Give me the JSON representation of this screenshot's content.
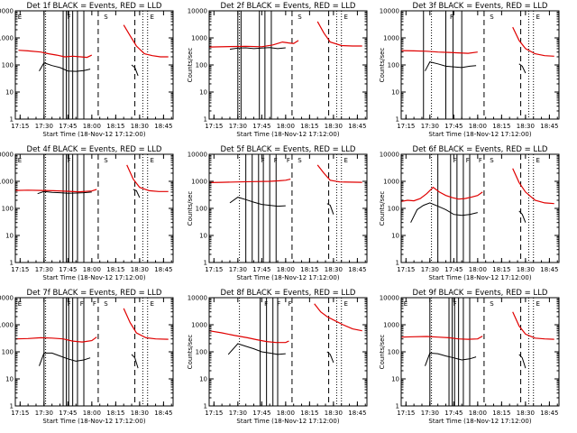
{
  "colors": {
    "events": "#000000",
    "lld": "#e00000",
    "background": "#ffffff",
    "axes": "#000000"
  },
  "chart_data": [
    {
      "type": "line",
      "title": "Det 1f BLACK = Events, RED = LLD",
      "xlabel": "Start Time (18-Nov-12 17:12:00)",
      "ylabel": "Counts/sec",
      "x_ticks": [
        "17:15",
        "17:30",
        "17:45",
        "18:00",
        "18:15",
        "18:30",
        "18:45"
      ],
      "y_ticks": [
        "1",
        "10",
        "100",
        "1000",
        "10000"
      ],
      "xlim": [
        "17:12",
        "18:51"
      ],
      "ylim": [
        1,
        10000
      ],
      "yscale": "log",
      "marker_labels": [
        "E",
        "F",
        "S",
        "E"
      ],
      "series": [
        {
          "name": "Events",
          "x": [
            "17:27",
            "17:30",
            "17:35",
            "17:40",
            "17:45",
            "17:50",
            "17:55",
            "17:59"
          ],
          "y": [
            60,
            120,
            95,
            80,
            60,
            58,
            62,
            70
          ]
        },
        {
          "name": "Events",
          "x": [
            "18:25",
            "18:27",
            "18:29"
          ],
          "y": [
            100,
            80,
            40
          ]
        },
        {
          "name": "LLD",
          "x": [
            "17:14",
            "17:20",
            "17:28",
            "17:33",
            "17:38",
            "17:43",
            "17:48",
            "17:53",
            "17:57",
            "18:00"
          ],
          "y": [
            350,
            330,
            300,
            260,
            230,
            200,
            210,
            200,
            190,
            230
          ]
        },
        {
          "name": "LLD",
          "x": [
            "18:20",
            "18:24",
            "18:28",
            "18:33",
            "18:38",
            "18:43",
            "18:48"
          ],
          "y": [
            3000,
            1200,
            500,
            260,
            220,
            200,
            200
          ]
        }
      ]
    },
    {
      "type": "line",
      "title": "Det 2f BLACK = Events, RED = LLD",
      "xlabel": "Start Time (18-Nov-12 17:12:00)",
      "ylabel": "Counts/sec",
      "x_ticks": [
        "17:15",
        "17:30",
        "17:45",
        "18:00",
        "18:15",
        "18:30",
        "18:45"
      ],
      "y_ticks": [
        "1",
        "10",
        "100",
        "1000",
        "10000"
      ],
      "xlim": [
        "17:12",
        "18:51"
      ],
      "ylim": [
        1,
        10000
      ],
      "yscale": "log",
      "marker_labels": [
        "S",
        "E"
      ],
      "series": [
        {
          "name": "Events",
          "x": [
            "17:25",
            "17:30",
            "17:35",
            "17:40",
            "17:45",
            "17:50",
            "17:55",
            "18:00"
          ],
          "y": [
            380,
            420,
            430,
            400,
            420,
            440,
            400,
            430
          ]
        },
        {
          "name": "LLD",
          "x": [
            "17:12",
            "17:25",
            "17:35",
            "17:45",
            "17:52",
            "17:58",
            "18:02",
            "18:05",
            "18:08"
          ],
          "y": [
            460,
            480,
            490,
            470,
            550,
            700,
            650,
            620,
            800
          ]
        },
        {
          "name": "LLD",
          "x": [
            "18:20",
            "18:24",
            "18:28",
            "18:35",
            "18:42",
            "18:48"
          ],
          "y": [
            4000,
            1500,
            700,
            520,
            500,
            500
          ]
        }
      ]
    },
    {
      "type": "line",
      "title": "Det 3f BLACK = Events, RED = LLD",
      "xlabel": "Start Time (18-Nov-12 17:12:00)",
      "ylabel": "Counts/sec",
      "x_ticks": [
        "17:15",
        "17:30",
        "17:45",
        "18:00",
        "18:15",
        "18:30",
        "18:45"
      ],
      "y_ticks": [
        "1",
        "10",
        "100",
        "1000",
        "10000"
      ],
      "xlim": [
        "17:12",
        "18:51"
      ],
      "ylim": [
        1,
        10000
      ],
      "yscale": "log",
      "marker_labels": [
        "F",
        "S",
        "E"
      ],
      "series": [
        {
          "name": "Events",
          "x": [
            "17:27",
            "17:30",
            "17:35",
            "17:40",
            "17:45",
            "17:50",
            "17:55",
            "17:59"
          ],
          "y": [
            60,
            130,
            110,
            90,
            85,
            80,
            90,
            95
          ]
        },
        {
          "name": "Events",
          "x": [
            "18:26",
            "18:28",
            "18:30"
          ],
          "y": [
            110,
            90,
            50
          ]
        },
        {
          "name": "LLD",
          "x": [
            "17:12",
            "17:20",
            "17:28",
            "17:35",
            "17:42",
            "17:48",
            "17:54",
            "18:00"
          ],
          "y": [
            340,
            330,
            320,
            300,
            290,
            280,
            270,
            300
          ]
        },
        {
          "name": "LLD",
          "x": [
            "18:22",
            "18:26",
            "18:30",
            "18:36",
            "18:42",
            "18:48"
          ],
          "y": [
            2500,
            800,
            400,
            260,
            220,
            210
          ]
        }
      ]
    },
    {
      "type": "line",
      "title": "Det 4f BLACK = Events, RED = LLD",
      "xlabel": "Start Time (18-Nov-12 17:12:00)",
      "ylabel": "Counts/sec",
      "x_ticks": [
        "17:15",
        "17:30",
        "17:45",
        "18:00",
        "18:15",
        "18:30",
        "18:45"
      ],
      "y_ticks": [
        "1",
        "10",
        "100",
        "1000",
        "10000"
      ],
      "xlim": [
        "17:12",
        "18:51"
      ],
      "ylim": [
        1,
        10000
      ],
      "yscale": "log",
      "marker_labels": [
        "E",
        "F",
        "S",
        "E"
      ],
      "series": [
        {
          "name": "Events",
          "x": [
            "17:26",
            "17:30",
            "17:35",
            "17:40",
            "17:45",
            "17:50",
            "17:55",
            "18:00"
          ],
          "y": [
            350,
            420,
            390,
            380,
            360,
            370,
            380,
            400
          ]
        },
        {
          "name": "Events",
          "x": [
            "18:26",
            "18:28",
            "18:30"
          ],
          "y": [
            500,
            450,
            250
          ]
        },
        {
          "name": "LLD",
          "x": [
            "17:12",
            "17:20",
            "17:28",
            "17:36",
            "17:44",
            "17:52",
            "18:00",
            "18:03"
          ],
          "y": [
            460,
            470,
            460,
            450,
            430,
            410,
            440,
            500
          ]
        },
        {
          "name": "LLD",
          "x": [
            "18:22",
            "18:26",
            "18:30",
            "18:36",
            "18:42",
            "18:48"
          ],
          "y": [
            4000,
            1200,
            600,
            450,
            420,
            420
          ]
        }
      ]
    },
    {
      "type": "line",
      "title": "Det 5f BLACK = Events, RED = LLD",
      "xlabel": "Start Time (18-Nov-12 17:12:00)",
      "ylabel": "Counts/sec",
      "x_ticks": [
        "17:15",
        "17:30",
        "17:45",
        "18:00",
        "18:15",
        "18:30",
        "18:45"
      ],
      "y_ticks": [
        "1",
        "10",
        "100",
        "1000",
        "10000"
      ],
      "xlim": [
        "17:12",
        "18:51"
      ],
      "ylim": [
        1,
        10000
      ],
      "yscale": "log",
      "marker_labels": [
        "F",
        "F",
        "F",
        "S",
        "E"
      ],
      "series": [
        {
          "name": "Events",
          "x": [
            "17:25",
            "17:30",
            "17:35",
            "17:40",
            "17:45",
            "17:50",
            "17:55",
            "18:00"
          ],
          "y": [
            160,
            260,
            210,
            170,
            140,
            130,
            120,
            125
          ]
        },
        {
          "name": "Events",
          "x": [
            "18:26",
            "18:28",
            "18:30"
          ],
          "y": [
            150,
            130,
            60
          ]
        },
        {
          "name": "LLD",
          "x": [
            "17:12",
            "17:20",
            "17:30",
            "17:40",
            "17:50",
            "17:56",
            "18:00",
            "18:03"
          ],
          "y": [
            900,
            920,
            950,
            980,
            1000,
            1050,
            1100,
            1200
          ]
        },
        {
          "name": "LLD",
          "x": [
            "18:20",
            "18:24",
            "18:28",
            "18:34",
            "18:40",
            "18:48"
          ],
          "y": [
            4000,
            2000,
            1100,
            950,
            930,
            920
          ]
        }
      ]
    },
    {
      "type": "line",
      "title": "Det 6f BLACK = Events, RED = LLD",
      "xlabel": "Start Time (18-Nov-12 17:12:00)",
      "ylabel": "Counts/sec",
      "x_ticks": [
        "17:15",
        "17:30",
        "17:45",
        "18:00",
        "18:15",
        "18:30",
        "18:45"
      ],
      "y_ticks": [
        "1",
        "10",
        "100",
        "1000",
        "10000"
      ],
      "xlim": [
        "17:12",
        "18:51"
      ],
      "ylim": [
        1,
        10000
      ],
      "yscale": "log",
      "marker_labels": [
        "F",
        "F",
        "F",
        "S",
        "E"
      ],
      "series": [
        {
          "name": "Events",
          "x": [
            "17:18",
            "17:22",
            "17:26",
            "17:30",
            "17:35",
            "17:40",
            "17:45",
            "17:50",
            "17:55",
            "18:00"
          ],
          "y": [
            30,
            90,
            130,
            160,
            120,
            90,
            60,
            55,
            60,
            70
          ]
        },
        {
          "name": "Events",
          "x": [
            "18:26",
            "18:28",
            "18:30"
          ],
          "y": [
            80,
            60,
            30
          ]
        },
        {
          "name": "LLD",
          "x": [
            "17:12",
            "17:16",
            "17:20",
            "17:24",
            "17:28",
            "17:32",
            "17:36",
            "17:40",
            "17:44",
            "17:48",
            "17:52",
            "17:56",
            "18:00",
            "18:03"
          ],
          "y": [
            180,
            200,
            190,
            230,
            350,
            600,
            400,
            300,
            250,
            220,
            230,
            260,
            300,
            400
          ]
        },
        {
          "name": "LLD",
          "x": [
            "18:22",
            "18:26",
            "18:30",
            "18:36",
            "18:42",
            "18:48"
          ],
          "y": [
            3000,
            900,
            400,
            200,
            160,
            150
          ]
        }
      ]
    },
    {
      "type": "line",
      "title": "Det 7f BLACK = Events, RED = LLD",
      "xlabel": "Start Time (18-Nov-12 17:12:00)",
      "ylabel": "Counts/sec",
      "x_ticks": [
        "17:15",
        "17:30",
        "17:45",
        "18:00",
        "18:15",
        "18:30",
        "18:45"
      ],
      "y_ticks": [
        "1",
        "10",
        "100",
        "1000",
        "10000"
      ],
      "xlim": [
        "17:12",
        "18:51"
      ],
      "ylim": [
        1,
        10000
      ],
      "yscale": "log",
      "marker_labels": [
        "E",
        "F",
        "F",
        "F",
        "S",
        "E"
      ],
      "series": [
        {
          "name": "Events",
          "x": [
            "17:27",
            "17:30",
            "17:35",
            "17:40",
            "17:45",
            "17:50",
            "17:55",
            "17:59"
          ],
          "y": [
            30,
            90,
            90,
            70,
            55,
            45,
            50,
            60
          ]
        },
        {
          "name": "Events",
          "x": [
            "18:25",
            "18:27",
            "18:29"
          ],
          "y": [
            80,
            60,
            25
          ]
        },
        {
          "name": "LLD",
          "x": [
            "17:12",
            "17:20",
            "17:28",
            "17:35",
            "17:42",
            "17:48",
            "17:54",
            "18:00",
            "18:03"
          ],
          "y": [
            300,
            310,
            330,
            320,
            300,
            250,
            230,
            260,
            350
          ]
        },
        {
          "name": "LLD",
          "x": [
            "18:20",
            "18:24",
            "18:28",
            "18:34",
            "18:40",
            "18:48"
          ],
          "y": [
            4000,
            1200,
            500,
            330,
            300,
            290
          ]
        }
      ]
    },
    {
      "type": "line",
      "title": "Det 8f BLACK = Events, RED = LLD",
      "xlabel": "Start Time (18-Nov-12 17:12:00)",
      "ylabel": "Counts/sec",
      "x_ticks": [
        "17:15",
        "17:30",
        "17:45",
        "18:00",
        "18:15",
        "18:30",
        "18:45"
      ],
      "y_ticks": [
        "1",
        "10",
        "100",
        "1000",
        "10000"
      ],
      "xlim": [
        "17:12",
        "18:51"
      ],
      "ylim": [
        1,
        10000
      ],
      "yscale": "log",
      "marker_labels": [
        "F",
        "F",
        "F",
        "E"
      ],
      "series": [
        {
          "name": "Events",
          "x": [
            "17:24",
            "17:30",
            "17:35",
            "17:40",
            "17:45",
            "17:50",
            "17:55",
            "18:00"
          ],
          "y": [
            80,
            200,
            160,
            130,
            100,
            90,
            80,
            85
          ]
        },
        {
          "name": "Events",
          "x": [
            "18:26",
            "18:28",
            "18:30"
          ],
          "y": [
            100,
            80,
            40
          ]
        },
        {
          "name": "LLD",
          "x": [
            "17:12",
            "17:20",
            "17:28",
            "17:36",
            "17:42",
            "17:48",
            "17:54",
            "18:00",
            "18:02"
          ],
          "y": [
            600,
            500,
            400,
            330,
            280,
            240,
            220,
            220,
            250
          ]
        },
        {
          "name": "LLD",
          "x": [
            "18:18",
            "18:22",
            "18:26",
            "18:30",
            "18:36",
            "18:42",
            "18:48"
          ],
          "y": [
            6000,
            3000,
            2000,
            1500,
            1000,
            700,
            600
          ]
        }
      ]
    },
    {
      "type": "line",
      "title": "Det 9f BLACK = Events, RED = LLD",
      "xlabel": "Start Time (18-Nov-12 17:12:00)",
      "ylabel": "Counts/sec",
      "x_ticks": [
        "17:15",
        "17:30",
        "17:45",
        "18:00",
        "18:15",
        "18:30",
        "18:45"
      ],
      "y_ticks": [
        "1",
        "10",
        "100",
        "1000",
        "10000"
      ],
      "xlim": [
        "17:12",
        "18:51"
      ],
      "ylim": [
        1,
        10000
      ],
      "yscale": "log",
      "marker_labels": [
        "E",
        "F",
        "S",
        "E"
      ],
      "series": [
        {
          "name": "Events",
          "x": [
            "17:27",
            "17:30",
            "17:35",
            "17:40",
            "17:45",
            "17:50",
            "17:55",
            "17:59"
          ],
          "y": [
            30,
            90,
            85,
            70,
            60,
            50,
            55,
            65
          ]
        },
        {
          "name": "Events",
          "x": [
            "18:26",
            "18:28",
            "18:30"
          ],
          "y": [
            80,
            60,
            25
          ]
        },
        {
          "name": "LLD",
          "x": [
            "17:12",
            "17:20",
            "17:28",
            "17:35",
            "17:42",
            "17:48",
            "17:54",
            "18:00",
            "18:03"
          ],
          "y": [
            350,
            360,
            370,
            350,
            330,
            300,
            290,
            300,
            380
          ]
        },
        {
          "name": "LLD",
          "x": [
            "18:22",
            "18:26",
            "18:30",
            "18:36",
            "18:42",
            "18:48"
          ],
          "y": [
            3000,
            900,
            450,
            320,
            300,
            290
          ]
        }
      ]
    }
  ]
}
